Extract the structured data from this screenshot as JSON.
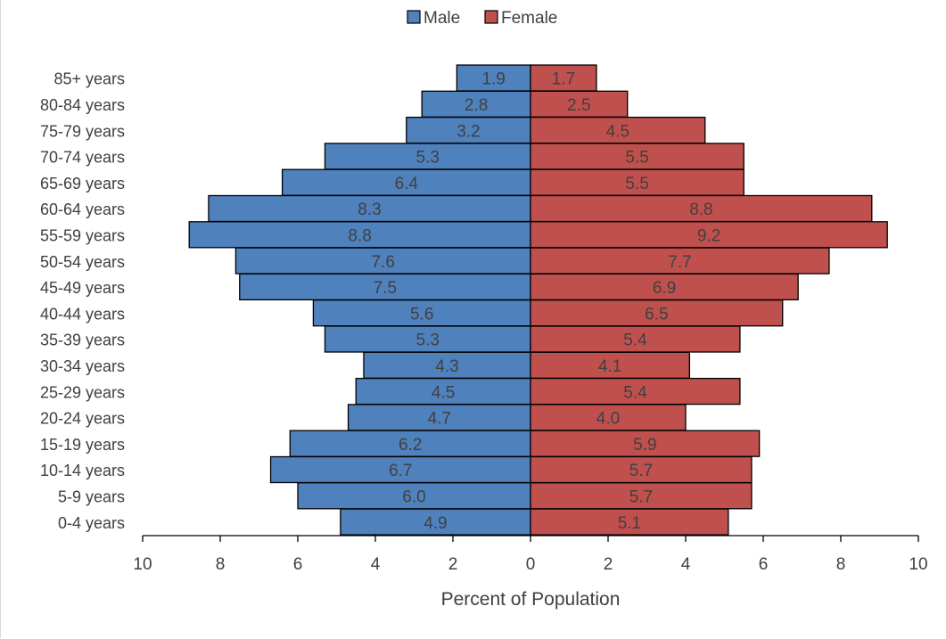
{
  "chart_data": {
    "type": "bar",
    "orientation": "horizontal",
    "layout": "population-pyramid",
    "categories": [
      "85+ years",
      "80-84 years",
      "75-79 years",
      "70-74 years",
      "65-69 years",
      "60-64 years",
      "55-59 years",
      "50-54 years",
      "45-49 years",
      "40-44 years",
      "35-39 years",
      "30-34 years",
      "25-29 years",
      "20-24 years",
      "15-19 years",
      "10-14 years",
      "5-9 years",
      "0-4 years"
    ],
    "series": [
      {
        "name": "Male",
        "color": "#4f81bd",
        "values": [
          1.9,
          2.8,
          3.2,
          5.3,
          6.4,
          8.3,
          8.8,
          7.6,
          7.5,
          5.6,
          5.3,
          4.3,
          4.5,
          4.7,
          6.2,
          6.7,
          6.0,
          4.9
        ],
        "labels": [
          "1.9",
          "2.8",
          "3.2",
          "5.3",
          "6.4",
          "8.3",
          "8.8",
          "7.6",
          "7.5",
          "5.6",
          "5.3",
          "4.3",
          "4.5",
          "4.7",
          "6.2",
          "6.7",
          "6.0",
          "4.9"
        ]
      },
      {
        "name": "Female",
        "color": "#c0504d",
        "values": [
          1.7,
          2.5,
          4.5,
          5.5,
          5.5,
          8.8,
          9.2,
          7.7,
          6.9,
          6.5,
          5.4,
          4.1,
          5.4,
          4.0,
          5.9,
          5.7,
          5.7,
          5.1
        ],
        "labels": [
          "1.7",
          "2.5",
          "4.5",
          "5.5",
          "5.5",
          "8.8",
          "9.2",
          "7.7",
          "6.9",
          "6.5",
          "5.4",
          "4.1",
          "5.4",
          "4.0",
          "5.9",
          "5.7",
          "5.7",
          "5.1"
        ]
      }
    ],
    "xlabel": "Percent of Population",
    "ylabel": "",
    "title": "",
    "xlim": [
      -10,
      10
    ],
    "xticks": [
      -10,
      -8,
      -6,
      -4,
      -2,
      0,
      2,
      4,
      6,
      8,
      10
    ],
    "xtick_labels": [
      "10",
      "8",
      "6",
      "4",
      "2",
      "0",
      "2",
      "4",
      "6",
      "8",
      "10"
    ],
    "legend_position": "top-center",
    "grid": false
  }
}
